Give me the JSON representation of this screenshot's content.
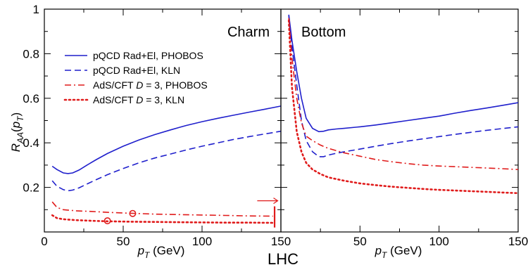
{
  "chart_data": {
    "type": "line",
    "footer": "LHC",
    "ylabel": "R_AA(p_T)",
    "ylim": [
      0,
      1
    ],
    "yticks": [
      "0.2",
      "0.4",
      "0.6",
      "0.8",
      "1"
    ],
    "ytick_values": [
      0.2,
      0.4,
      0.6,
      0.8,
      1
    ],
    "colors": {
      "blue": "#1f1fcc",
      "red": "#e01b1b"
    },
    "legend": [
      {
        "label": "pQCD Rad+El, PHOBOS",
        "style": "solid",
        "color": "blue"
      },
      {
        "label": "pQCD Rad+El, KLN",
        "style": "dashed",
        "color": "blue"
      },
      {
        "label": "AdS/CFT D = 3, PHOBOS",
        "style": "dashdot",
        "color": "red"
      },
      {
        "label": "AdS/CFT D = 3, KLN",
        "style": "dotted",
        "color": "red"
      }
    ],
    "panels": [
      {
        "title": "Charm",
        "xlabel": "p_T (GeV)",
        "xlim": [
          0,
          150
        ],
        "xticks": [
          "0",
          "50",
          "100",
          "150"
        ],
        "xtick_values": [
          0,
          50,
          100,
          150
        ],
        "series": [
          {
            "name": "pQCD Rad+El, PHOBOS",
            "style": "solid",
            "color": "blue",
            "x": [
              5,
              8,
              12,
              15,
              18,
              22,
              27,
              33,
              40,
              50,
              60,
              70,
              80,
              90,
              100,
              110,
              120,
              130,
              140,
              150
            ],
            "y": [
              0.295,
              0.28,
              0.265,
              0.262,
              0.265,
              0.278,
              0.3,
              0.325,
              0.352,
              0.385,
              0.413,
              0.437,
              0.458,
              0.478,
              0.495,
              0.51,
              0.524,
              0.538,
              0.551,
              0.565
            ]
          },
          {
            "name": "pQCD Rad+El, KLN",
            "style": "dashed",
            "color": "blue",
            "x": [
              5,
              8,
              12,
              15,
              18,
              22,
              27,
              33,
              40,
              50,
              60,
              70,
              80,
              90,
              100,
              110,
              120,
              130,
              140,
              150
            ],
            "y": [
              0.23,
              0.205,
              0.19,
              0.185,
              0.188,
              0.198,
              0.215,
              0.235,
              0.257,
              0.285,
              0.31,
              0.332,
              0.35,
              0.368,
              0.385,
              0.4,
              0.415,
              0.428,
              0.44,
              0.452
            ]
          },
          {
            "name": "AdS/CFT D = 3, PHOBOS",
            "style": "dashdot",
            "color": "red",
            "x": [
              5,
              8,
              12,
              20,
              30,
              40,
              55,
              70,
              85,
              100,
              115,
              130,
              145
            ],
            "y": [
              0.135,
              0.11,
              0.1,
              0.095,
              0.092,
              0.088,
              0.084,
              0.08,
              0.078,
              0.076,
              0.074,
              0.072,
              0.071
            ]
          },
          {
            "name": "AdS/CFT D = 3, KLN",
            "style": "dotted",
            "color": "red",
            "x": [
              5,
              8,
              12,
              20,
              30,
              40,
              55,
              70,
              85,
              100,
              115,
              130,
              145
            ],
            "y": [
              0.075,
              0.062,
              0.057,
              0.053,
              0.05,
              0.048,
              0.046,
              0.045,
              0.044,
              0.043,
              0.042,
              0.042,
              0.041
            ]
          }
        ],
        "markers": [
          {
            "x": 40,
            "y": 0.05,
            "color": "red"
          },
          {
            "x": 56,
            "y": 0.083,
            "color": "red"
          }
        ],
        "arrow": {
          "x_from": 135,
          "x_to": 148,
          "y": 0.14,
          "color": "red"
        },
        "cut_line": {
          "x": 146,
          "y_from": 0.02,
          "y_to": 0.115,
          "color": "red"
        }
      },
      {
        "title": "Bottom",
        "xlabel": "p_T (GeV)",
        "xlim": [
          0,
          150
        ],
        "xticks": [
          "50",
          "100",
          "150"
        ],
        "xtick_values": [
          50,
          100,
          150
        ],
        "series": [
          {
            "name": "pQCD Rad+El, PHOBOS",
            "style": "solid",
            "color": "blue",
            "x": [
              5,
              7,
              10,
              13,
              16,
              20,
              24,
              27,
              30,
              35,
              40,
              50,
              60,
              70,
              80,
              90,
              100,
              110,
              120,
              130,
              140,
              150
            ],
            "y": [
              0.975,
              0.86,
              0.72,
              0.6,
              0.51,
              0.465,
              0.45,
              0.452,
              0.458,
              0.462,
              0.465,
              0.472,
              0.48,
              0.49,
              0.5,
              0.51,
              0.52,
              0.533,
              0.545,
              0.556,
              0.568,
              0.58
            ]
          },
          {
            "name": "pQCD Rad+El, KLN",
            "style": "dashed",
            "color": "blue",
            "x": [
              5,
              7,
              10,
              13,
              16,
              20,
              24,
              27,
              30,
              35,
              40,
              50,
              60,
              70,
              80,
              90,
              100,
              110,
              120,
              130,
              140,
              150
            ],
            "y": [
              0.97,
              0.83,
              0.66,
              0.5,
              0.41,
              0.36,
              0.338,
              0.338,
              0.345,
              0.353,
              0.36,
              0.372,
              0.385,
              0.397,
              0.408,
              0.418,
              0.428,
              0.438,
              0.447,
              0.456,
              0.464,
              0.472
            ]
          },
          {
            "name": "AdS/CFT D = 3, PHOBOS",
            "style": "dashdot",
            "color": "red",
            "x": [
              5,
              7,
              10,
              13,
              16,
              20,
              25,
              30,
              40,
              50,
              60,
              70,
              80,
              90,
              100,
              110,
              120,
              130,
              140,
              150
            ],
            "y": [
              0.96,
              0.78,
              0.6,
              0.49,
              0.43,
              0.41,
              0.39,
              0.375,
              0.355,
              0.34,
              0.325,
              0.315,
              0.307,
              0.3,
              0.296,
              0.293,
              0.29,
              0.287,
              0.284,
              0.28
            ]
          },
          {
            "name": "AdS/CFT D = 3, KLN",
            "style": "dotted",
            "color": "red",
            "x": [
              5,
              7,
              10,
              13,
              16,
              20,
              25,
              30,
              40,
              50,
              60,
              70,
              80,
              90,
              100,
              110,
              120,
              130,
              140,
              150
            ],
            "y": [
              0.95,
              0.65,
              0.45,
              0.36,
              0.31,
              0.28,
              0.26,
              0.245,
              0.23,
              0.218,
              0.21,
              0.203,
              0.198,
              0.193,
              0.189,
              0.186,
              0.183,
              0.18,
              0.177,
              0.174
            ]
          }
        ],
        "markers": [],
        "arrow": null,
        "cut_line": null
      }
    ]
  }
}
